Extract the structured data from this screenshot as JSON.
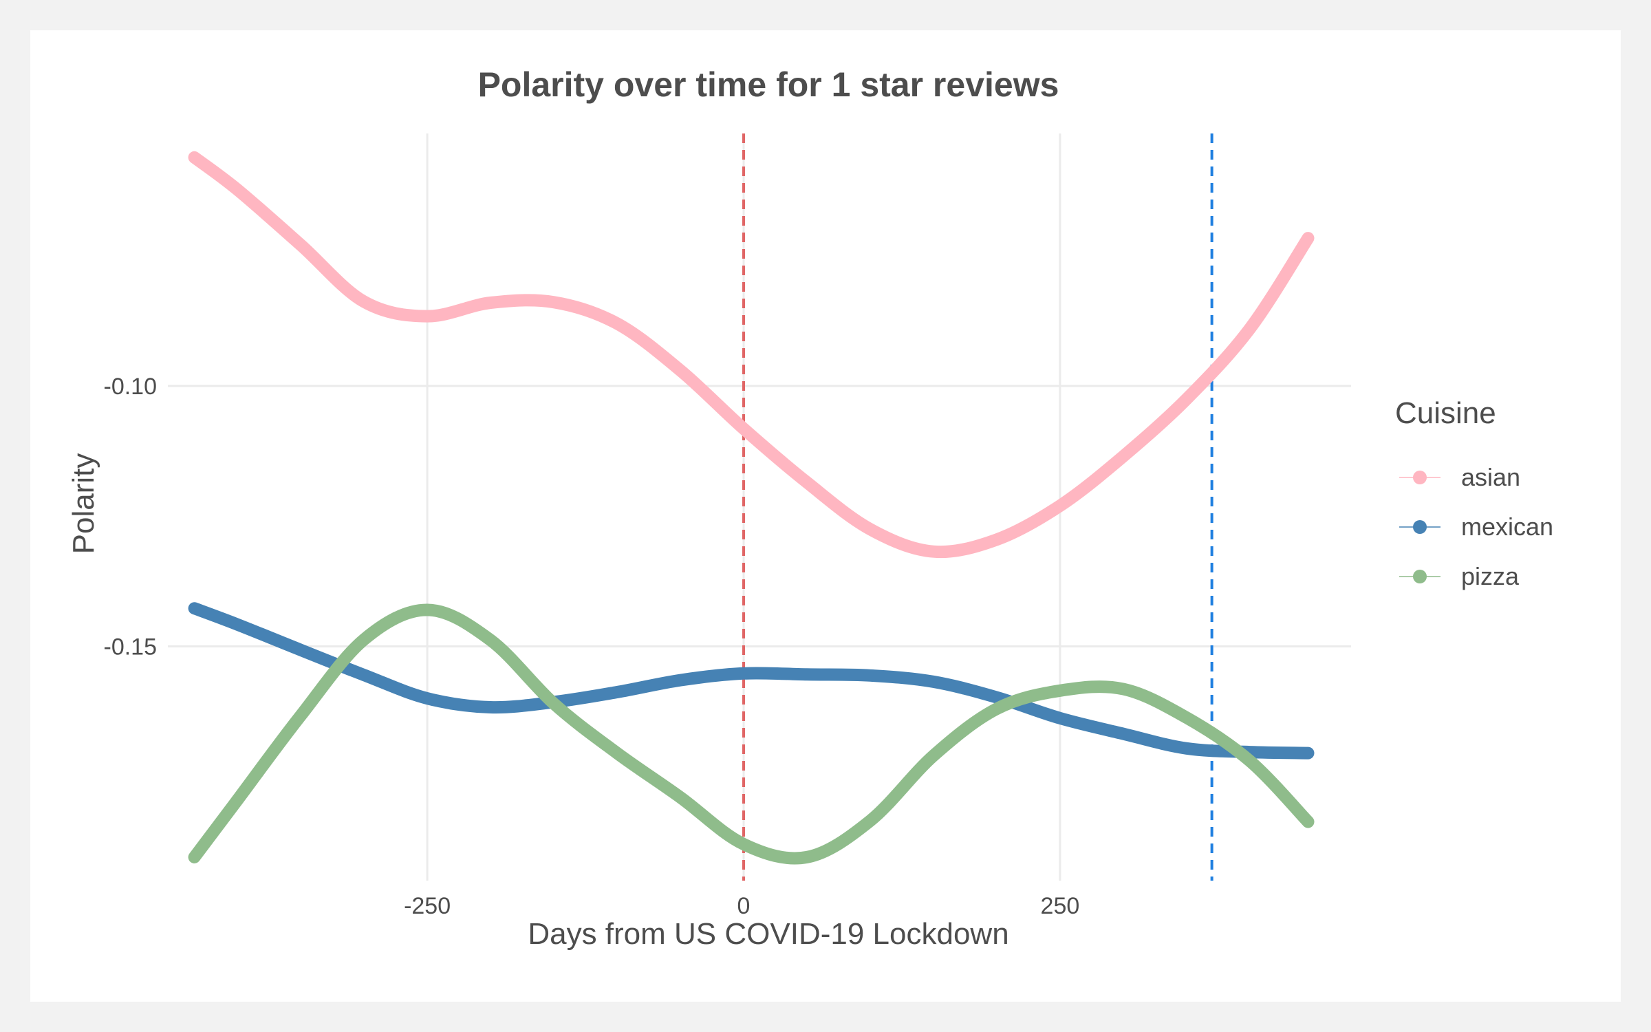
{
  "chart_data": {
    "type": "line",
    "title": "Polarity over time for 1 star reviews",
    "xlabel": "Days from US COVID-19 Lockdown",
    "ylabel": "Polarity",
    "xlim": [
      -455,
      480
    ],
    "ylim": [
      -0.195,
      -0.0515
    ],
    "x_ticks": [
      -250,
      0,
      250
    ],
    "x_tick_labels": [
      "-250",
      "0",
      "250"
    ],
    "y_ticks": [
      -0.1,
      -0.15
    ],
    "y_tick_labels": [
      "-0.10",
      "-0.15"
    ],
    "grid": true,
    "legend": {
      "title": "Cuisine",
      "placement": "right"
    },
    "reference_lines": [
      {
        "x": 0,
        "color": "#e06666",
        "style": "dashed"
      },
      {
        "x": 370,
        "color": "#1f7fe0",
        "style": "dashed"
      }
    ],
    "series": [
      {
        "name": "asian",
        "color": "#ffb6c1",
        "x": [
          -434,
          -400,
          -350,
          -300,
          -250,
          -200,
          -150,
          -100,
          -50,
          0,
          50,
          100,
          150,
          200,
          250,
          300,
          350,
          400,
          446
        ],
        "y": [
          -0.0561,
          -0.0623,
          -0.0729,
          -0.0838,
          -0.0866,
          -0.084,
          -0.0839,
          -0.088,
          -0.097,
          -0.1082,
          -0.1185,
          -0.1275,
          -0.1318,
          -0.1295,
          -0.123,
          -0.1135,
          -0.1025,
          -0.089,
          -0.0716
        ]
      },
      {
        "name": "mexican",
        "color": "#4682b4",
        "x": [
          -434,
          -400,
          -350,
          -300,
          -250,
          -200,
          -150,
          -100,
          -50,
          0,
          50,
          100,
          150,
          200,
          250,
          300,
          350,
          400,
          446
        ],
        "y": [
          -0.1427,
          -0.1458,
          -0.1507,
          -0.1555,
          -0.16,
          -0.1617,
          -0.1607,
          -0.1588,
          -0.1565,
          -0.1552,
          -0.1554,
          -0.1556,
          -0.1568,
          -0.1598,
          -0.1638,
          -0.1668,
          -0.1696,
          -0.1703,
          -0.1705
        ]
      },
      {
        "name": "pizza",
        "color": "#8fbc8b",
        "x": [
          -434,
          -400,
          -350,
          -300,
          -250,
          -200,
          -150,
          -100,
          -50,
          0,
          50,
          100,
          150,
          200,
          250,
          300,
          350,
          400,
          446
        ],
        "y": [
          -0.1905,
          -0.1795,
          -0.1633,
          -0.1487,
          -0.143,
          -0.1488,
          -0.161,
          -0.1705,
          -0.179,
          -0.188,
          -0.1905,
          -0.1835,
          -0.171,
          -0.162,
          -0.1585,
          -0.1582,
          -0.1637,
          -0.172,
          -0.1837
        ]
      }
    ]
  }
}
